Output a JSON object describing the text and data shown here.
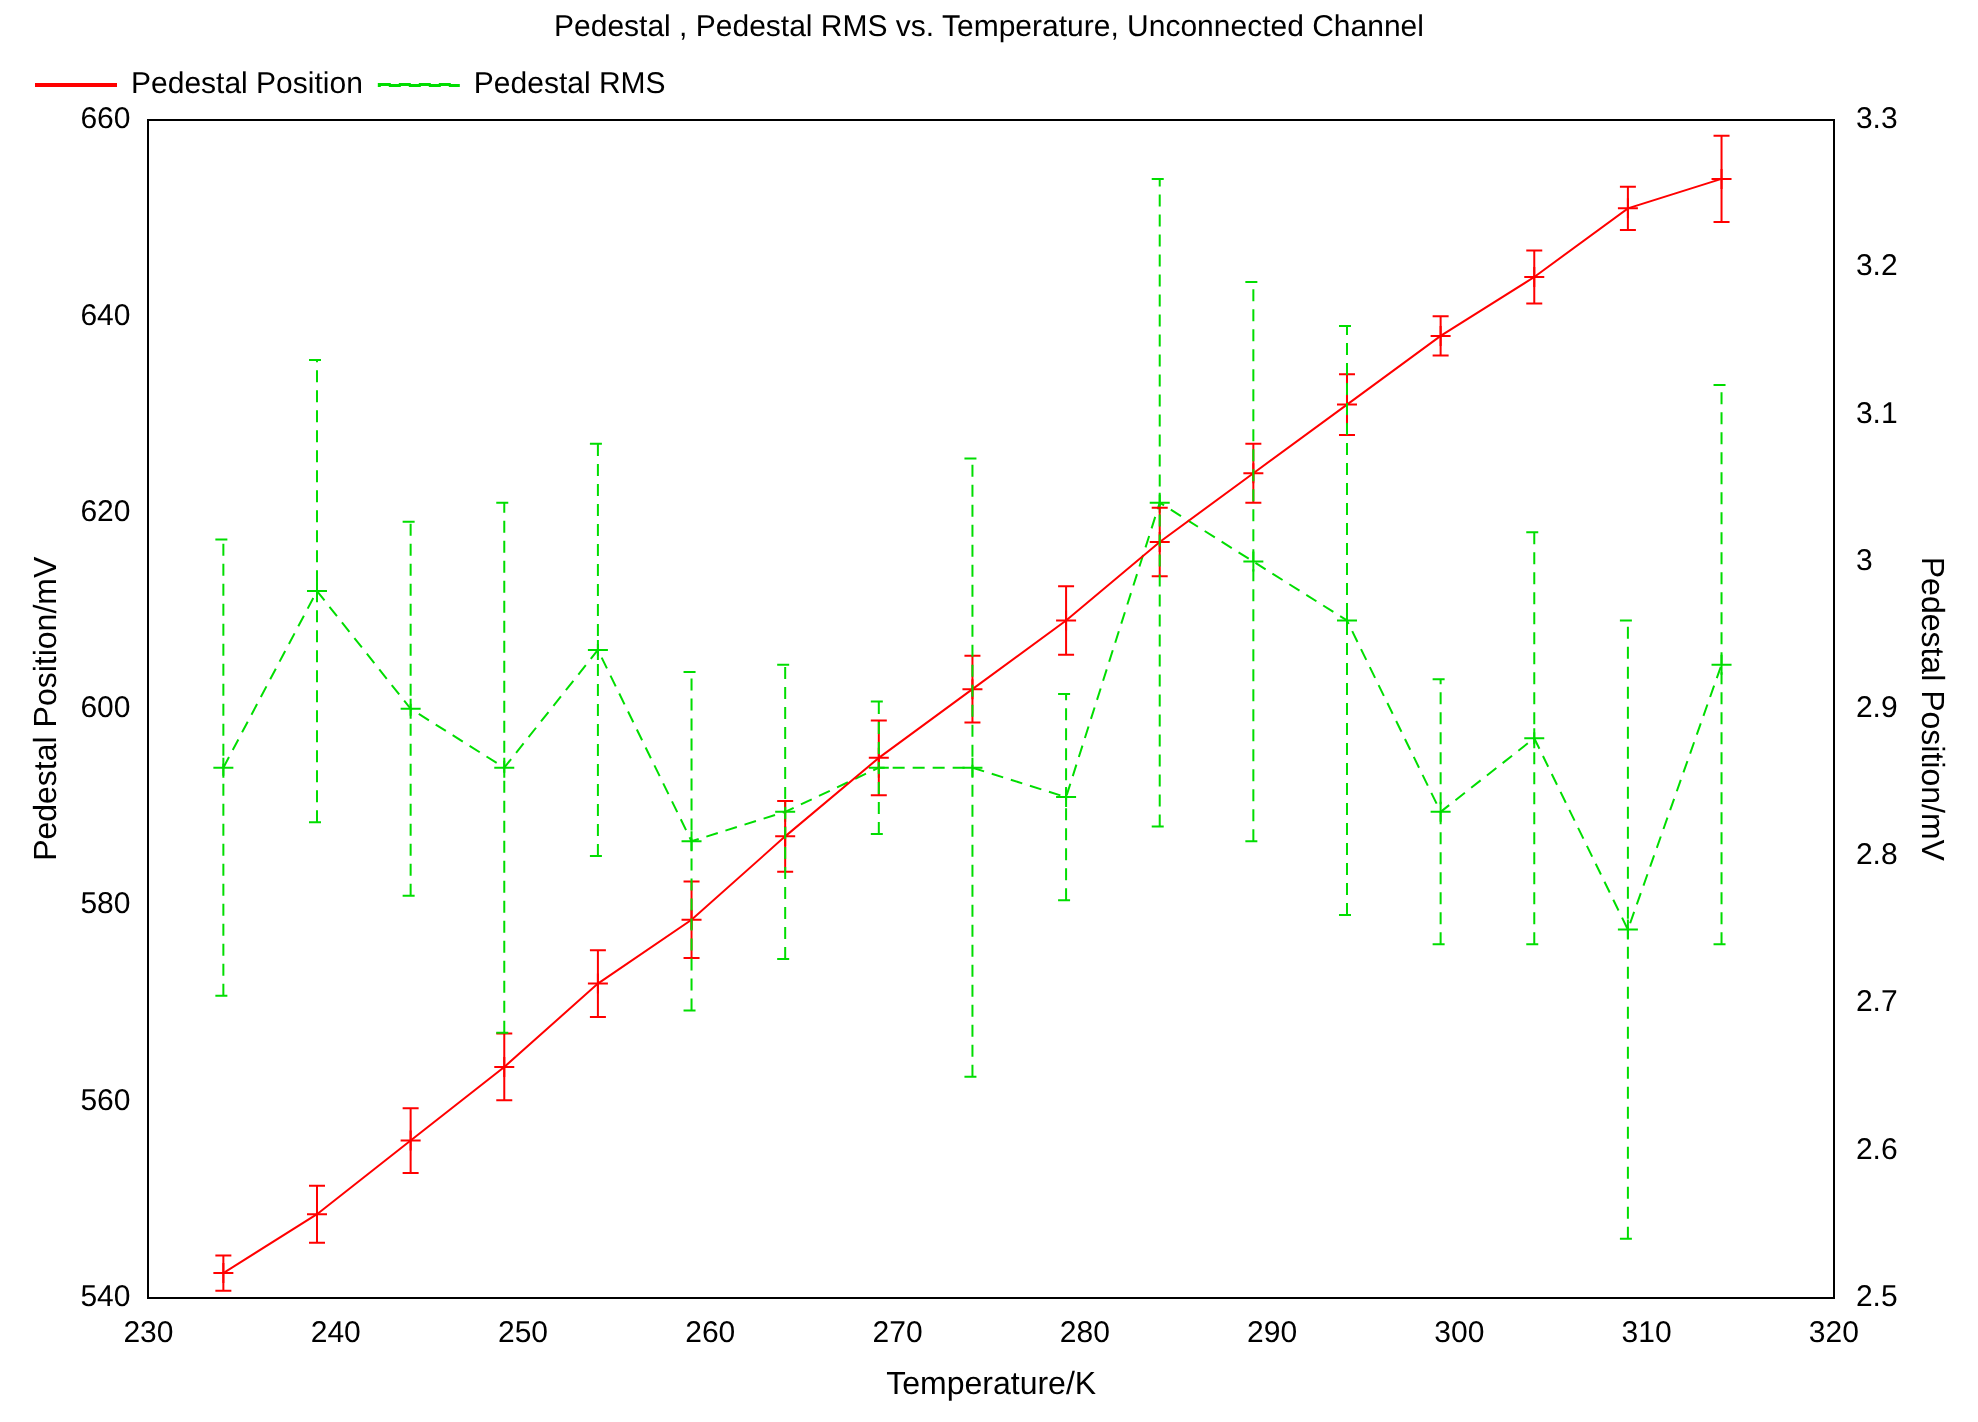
{
  "chart_data": {
    "type": "line",
    "title": "Pedestal , Pedestal RMS vs. Temperature, Unconnected Channel",
    "xlabel": "Temperature/K",
    "ylabel": "Pedestal Position/mV",
    "y2label": "Pedestal Position/mV",
    "x": [
      234,
      239,
      244,
      249,
      254,
      259,
      264,
      269,
      274,
      279,
      284,
      289,
      294,
      299,
      304,
      309,
      314
    ],
    "series": [
      {
        "name": "Pedestal Position",
        "color": "#ff0000",
        "marker": "cross",
        "line_style": "solid",
        "values": [
          542.5,
          548.5,
          556,
          563.5,
          572,
          578.5,
          587,
          595,
          602,
          609,
          617,
          624,
          631,
          638,
          644,
          651,
          654
        ],
        "errors": [
          1.8,
          2.9,
          3.3,
          3.4,
          3.4,
          3.9,
          3.6,
          3.8,
          3.4,
          3.5,
          3.5,
          3,
          3.1,
          2,
          2.7,
          2.2,
          4.4
        ]
      },
      {
        "name": "Pedestal RMS",
        "color": "#00dd00",
        "marker": "cross",
        "line_style": "dashed",
        "axis": "y2",
        "values": [
          2.86,
          2.98,
          2.9,
          2.86,
          2.94,
          2.81,
          2.83,
          2.86,
          2.86,
          2.84,
          3.04,
          3,
          2.96,
          2.83,
          2.88,
          2.75,
          2.93
        ],
        "errors": [
          0.155,
          0.157,
          0.127,
          0.18,
          0.14,
          0.115,
          0.1,
          0.045,
          0.21,
          0.07,
          0.22,
          0.19,
          0.2,
          0.09,
          0.14,
          0.21,
          0.19
        ]
      }
    ],
    "xlim": [
      230,
      320
    ],
    "xticks": [
      230,
      240,
      250,
      260,
      270,
      280,
      290,
      300,
      310,
      320
    ],
    "ylim": [
      540,
      660
    ],
    "yticks": [
      540,
      560,
      580,
      600,
      620,
      640,
      660
    ],
    "y2lim": [
      2.5,
      3.3
    ],
    "y2ticks": [
      2.5,
      2.6,
      2.7,
      2.8,
      2.9,
      3,
      3.1,
      3.2,
      3.3
    ],
    "grid": false,
    "legend": "top left"
  }
}
